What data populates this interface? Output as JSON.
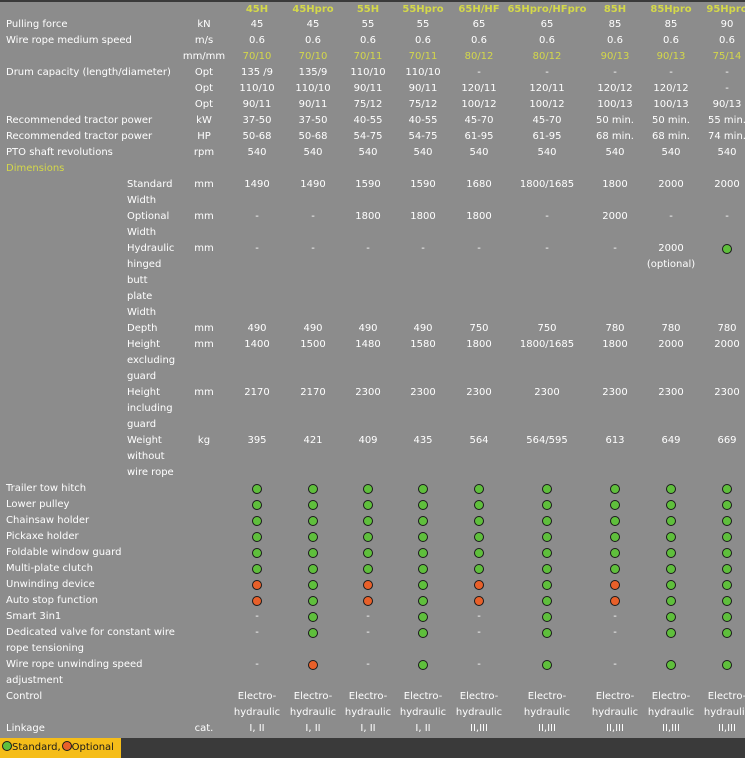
{
  "legend": {
    "standard_label": "Standard,",
    "optional_label": "Optional",
    "standard_color": "#5fbf3c",
    "optional_color": "#e8602a",
    "bar_color": "#f5bd19"
  },
  "models": [
    "45H",
    "45Hpro",
    "55H",
    "55Hpro",
    "65H/HF",
    "65Hpro/HFpro",
    "85H",
    "85Hpro",
    "95Hpro"
  ],
  "rows": [
    {
      "label": [
        "Pulling force"
      ],
      "unit": "kN",
      "values": [
        [
          "45"
        ],
        [
          "45"
        ],
        [
          "55"
        ],
        [
          "55"
        ],
        [
          "65"
        ],
        [
          "65"
        ],
        [
          "85"
        ],
        [
          "85"
        ],
        [
          "90"
        ]
      ]
    },
    {
      "label": [
        "Wire rope medium speed"
      ],
      "unit": "m/s",
      "values": [
        [
          "0.6"
        ],
        [
          "0.6"
        ],
        [
          "0.6"
        ],
        [
          "0.6"
        ],
        [
          "0.6"
        ],
        [
          "0.6"
        ],
        [
          "0.6"
        ],
        [
          "0.6"
        ],
        [
          "0.6"
        ]
      ]
    },
    {
      "unit": "mm/mm",
      "highlight": true,
      "values": [
        [
          "70/10"
        ],
        [
          "70/10"
        ],
        [
          "70/11"
        ],
        [
          "70/11"
        ],
        [
          "80/12"
        ],
        [
          "80/12"
        ],
        [
          "90/13"
        ],
        [
          "90/13"
        ],
        [
          "75/14"
        ]
      ]
    },
    {
      "label": [
        "Drum capacity (length/diameter)"
      ],
      "unit": "Opt",
      "values": [
        [
          "135 /9"
        ],
        [
          "135/9"
        ],
        [
          "110/10"
        ],
        [
          "110/10"
        ],
        [
          "-"
        ],
        [
          "-"
        ],
        [
          "-"
        ],
        [
          "-"
        ],
        [
          "-"
        ]
      ]
    },
    {
      "unit": "Opt",
      "values": [
        [
          "110/10"
        ],
        [
          "110/10"
        ],
        [
          "90/11"
        ],
        [
          "90/11"
        ],
        [
          "120/11"
        ],
        [
          "120/11"
        ],
        [
          "120/12"
        ],
        [
          "120/12"
        ],
        [
          "-"
        ]
      ]
    },
    {
      "unit": "Opt",
      "values": [
        [
          "90/11"
        ],
        [
          "90/11"
        ],
        [
          "75/12"
        ],
        [
          "75/12"
        ],
        [
          "100/12"
        ],
        [
          "100/12"
        ],
        [
          "100/13"
        ],
        [
          "100/13"
        ],
        [
          "90/13"
        ]
      ]
    },
    {
      "label": [
        "Recommended tractor power"
      ],
      "unit": "kW",
      "values": [
        [
          "37-50"
        ],
        [
          "37-50"
        ],
        [
          "40-55"
        ],
        [
          "40-55"
        ],
        [
          "45-70"
        ],
        [
          "45-70"
        ],
        [
          "50 min."
        ],
        [
          "50 min."
        ],
        [
          "55 min."
        ]
      ]
    },
    {
      "label": [
        "Recommended tractor power"
      ],
      "unit": "HP",
      "values": [
        [
          "50-68"
        ],
        [
          "50-68"
        ],
        [
          "54-75"
        ],
        [
          "54-75"
        ],
        [
          "61-95"
        ],
        [
          "61-95"
        ],
        [
          "68 min."
        ],
        [
          "68 min."
        ],
        [
          "74 min."
        ]
      ]
    },
    {
      "label": [
        "PTO shaft revolutions"
      ],
      "unit": "rpm",
      "values": [
        [
          "540"
        ],
        [
          "540"
        ],
        [
          "540"
        ],
        [
          "540"
        ],
        [
          "540"
        ],
        [
          "540"
        ],
        [
          "540"
        ],
        [
          "540"
        ],
        [
          "540"
        ]
      ]
    },
    {
      "section": "Dimensions"
    },
    {
      "sublabel": [
        "Standard",
        "Width"
      ],
      "unit": "mm",
      "values": [
        [
          "1490"
        ],
        [
          "1490"
        ],
        [
          "1590"
        ],
        [
          "1590"
        ],
        [
          "1680"
        ],
        [
          "1800/1685"
        ],
        [
          "1800"
        ],
        [
          "2000"
        ],
        [
          "2000"
        ]
      ]
    },
    {
      "sublabel": [
        "Optional",
        "Width"
      ],
      "unit": "mm",
      "values": [
        [
          "-"
        ],
        [
          "-"
        ],
        [
          "1800"
        ],
        [
          "1800"
        ],
        [
          "1800"
        ],
        [
          "-"
        ],
        [
          "2000"
        ],
        [
          "-"
        ],
        [
          "-"
        ]
      ]
    },
    {
      "sublabel": [
        "Hydraulic",
        "hinged",
        "butt",
        "plate",
        "Width"
      ],
      "unit": "mm",
      "values": [
        [
          "-"
        ],
        [
          "-"
        ],
        [
          "-"
        ],
        [
          "-"
        ],
        [
          "-"
        ],
        [
          "-"
        ],
        [
          "-"
        ],
        [
          "2000",
          "(optional)"
        ],
        [
          "@S"
        ]
      ]
    },
    {
      "sublabel": [
        "Depth"
      ],
      "unit": "mm",
      "values": [
        [
          "490"
        ],
        [
          "490"
        ],
        [
          "490"
        ],
        [
          "490"
        ],
        [
          "750"
        ],
        [
          "750"
        ],
        [
          "780"
        ],
        [
          "780"
        ],
        [
          "780"
        ]
      ]
    },
    {
      "sublabel": [
        "Height",
        "excluding",
        "guard"
      ],
      "unit": "mm",
      "values": [
        [
          "1400"
        ],
        [
          "1500"
        ],
        [
          "1480"
        ],
        [
          "1580"
        ],
        [
          "1800"
        ],
        [
          "1800/1685"
        ],
        [
          "1800"
        ],
        [
          "2000"
        ],
        [
          "2000"
        ]
      ]
    },
    {
      "sublabel": [
        "Height",
        "including",
        "guard"
      ],
      "unit": "mm",
      "values": [
        [
          "2170"
        ],
        [
          "2170"
        ],
        [
          "2300"
        ],
        [
          "2300"
        ],
        [
          "2300"
        ],
        [
          "2300"
        ],
        [
          "2300"
        ],
        [
          "2300"
        ],
        [
          "2300"
        ]
      ]
    },
    {
      "sublabel": [
        "Weight",
        "without",
        "wire rope"
      ],
      "unit": "kg",
      "values": [
        [
          "395"
        ],
        [
          "421"
        ],
        [
          "409"
        ],
        [
          "435"
        ],
        [
          "564"
        ],
        [
          "564/595"
        ],
        [
          "613"
        ],
        [
          "649"
        ],
        [
          "669"
        ]
      ]
    },
    {
      "label": [
        "Trailer tow hitch"
      ],
      "values": [
        [
          "@S"
        ],
        [
          "@S"
        ],
        [
          "@S"
        ],
        [
          "@S"
        ],
        [
          "@S"
        ],
        [
          "@S"
        ],
        [
          "@S"
        ],
        [
          "@S"
        ],
        [
          "@S"
        ]
      ]
    },
    {
      "label": [
        "Lower pulley"
      ],
      "values": [
        [
          "@S"
        ],
        [
          "@S"
        ],
        [
          "@S"
        ],
        [
          "@S"
        ],
        [
          "@S"
        ],
        [
          "@S"
        ],
        [
          "@S"
        ],
        [
          "@S"
        ],
        [
          "@S"
        ]
      ]
    },
    {
      "label": [
        "Chainsaw holder"
      ],
      "values": [
        [
          "@S"
        ],
        [
          "@S"
        ],
        [
          "@S"
        ],
        [
          "@S"
        ],
        [
          "@S"
        ],
        [
          "@S"
        ],
        [
          "@S"
        ],
        [
          "@S"
        ],
        [
          "@S"
        ]
      ]
    },
    {
      "label": [
        "Pickaxe holder"
      ],
      "values": [
        [
          "@S"
        ],
        [
          "@S"
        ],
        [
          "@S"
        ],
        [
          "@S"
        ],
        [
          "@S"
        ],
        [
          "@S"
        ],
        [
          "@S"
        ],
        [
          "@S"
        ],
        [
          "@S"
        ]
      ]
    },
    {
      "label": [
        "Foldable window guard"
      ],
      "values": [
        [
          "@S"
        ],
        [
          "@S"
        ],
        [
          "@S"
        ],
        [
          "@S"
        ],
        [
          "@S"
        ],
        [
          "@S"
        ],
        [
          "@S"
        ],
        [
          "@S"
        ],
        [
          "@S"
        ]
      ]
    },
    {
      "label": [
        "Multi-plate clutch"
      ],
      "values": [
        [
          "@S"
        ],
        [
          "@S"
        ],
        [
          "@S"
        ],
        [
          "@S"
        ],
        [
          "@S"
        ],
        [
          "@S"
        ],
        [
          "@S"
        ],
        [
          "@S"
        ],
        [
          "@S"
        ]
      ]
    },
    {
      "label": [
        "Unwinding device"
      ],
      "values": [
        [
          "@O"
        ],
        [
          "@S"
        ],
        [
          "@O"
        ],
        [
          "@S"
        ],
        [
          "@O"
        ],
        [
          "@S"
        ],
        [
          "@O"
        ],
        [
          "@S"
        ],
        [
          "@S"
        ]
      ]
    },
    {
      "label": [
        "Auto stop function"
      ],
      "values": [
        [
          "@O"
        ],
        [
          "@S"
        ],
        [
          "@O"
        ],
        [
          "@S"
        ],
        [
          "@O"
        ],
        [
          "@S"
        ],
        [
          "@O"
        ],
        [
          "@S"
        ],
        [
          "@S"
        ]
      ]
    },
    {
      "label": [
        "Smart 3in1"
      ],
      "values": [
        [
          "-"
        ],
        [
          "@S"
        ],
        [
          "-"
        ],
        [
          "@S"
        ],
        [
          "-"
        ],
        [
          "@S"
        ],
        [
          "-"
        ],
        [
          "@S"
        ],
        [
          "@S"
        ]
      ]
    },
    {
      "label": [
        "Dedicated valve for constant wire",
        "rope tensioning"
      ],
      "values": [
        [
          "-"
        ],
        [
          "@S"
        ],
        [
          "-"
        ],
        [
          "@S"
        ],
        [
          "-"
        ],
        [
          "@S"
        ],
        [
          "-"
        ],
        [
          "@S"
        ],
        [
          "@S"
        ]
      ]
    },
    {
      "label": [
        "Wire rope unwinding speed",
        "adjustment"
      ],
      "values": [
        [
          "-"
        ],
        [
          "@O"
        ],
        [
          "-"
        ],
        [
          "@S"
        ],
        [
          "-"
        ],
        [
          "@S"
        ],
        [
          "-"
        ],
        [
          "@S"
        ],
        [
          "@S"
        ]
      ]
    },
    {
      "label": [
        "Control"
      ],
      "values": [
        [
          "Electro-",
          "hydraulic"
        ],
        [
          "Electro-",
          "hydraulic"
        ],
        [
          "Electro-",
          "hydraulic"
        ],
        [
          "Electro-",
          "hydraulic"
        ],
        [
          "Electro-",
          "hydraulic"
        ],
        [
          "Electro-",
          "hydraulic"
        ],
        [
          "Electro-",
          "hydraulic"
        ],
        [
          "Electro-",
          "hydraulic"
        ],
        [
          "Electro-",
          "hydraulic"
        ]
      ]
    },
    {
      "label": [
        "Linkage"
      ],
      "unit": "cat.",
      "values": [
        [
          "I, II"
        ],
        [
          "I, II"
        ],
        [
          "I, II"
        ],
        [
          "I, II"
        ],
        [
          "II,III"
        ],
        [
          "II,III"
        ],
        [
          "II,III"
        ],
        [
          "II,III"
        ],
        [
          "II,III"
        ]
      ]
    }
  ]
}
